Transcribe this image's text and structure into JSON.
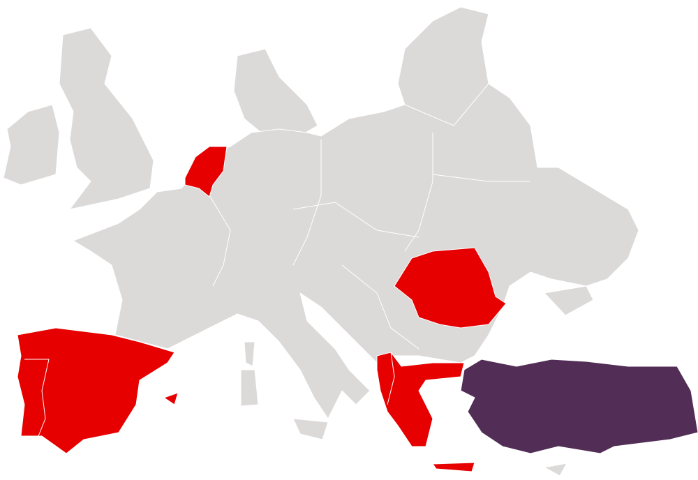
{
  "map": {
    "colors": {
      "background": "#ffffff",
      "base_land": "#dcd9d9",
      "highlight_primary": "#e60000",
      "highlight_secondary": "#522d56",
      "border": "#ffffff"
    }
  }
}
